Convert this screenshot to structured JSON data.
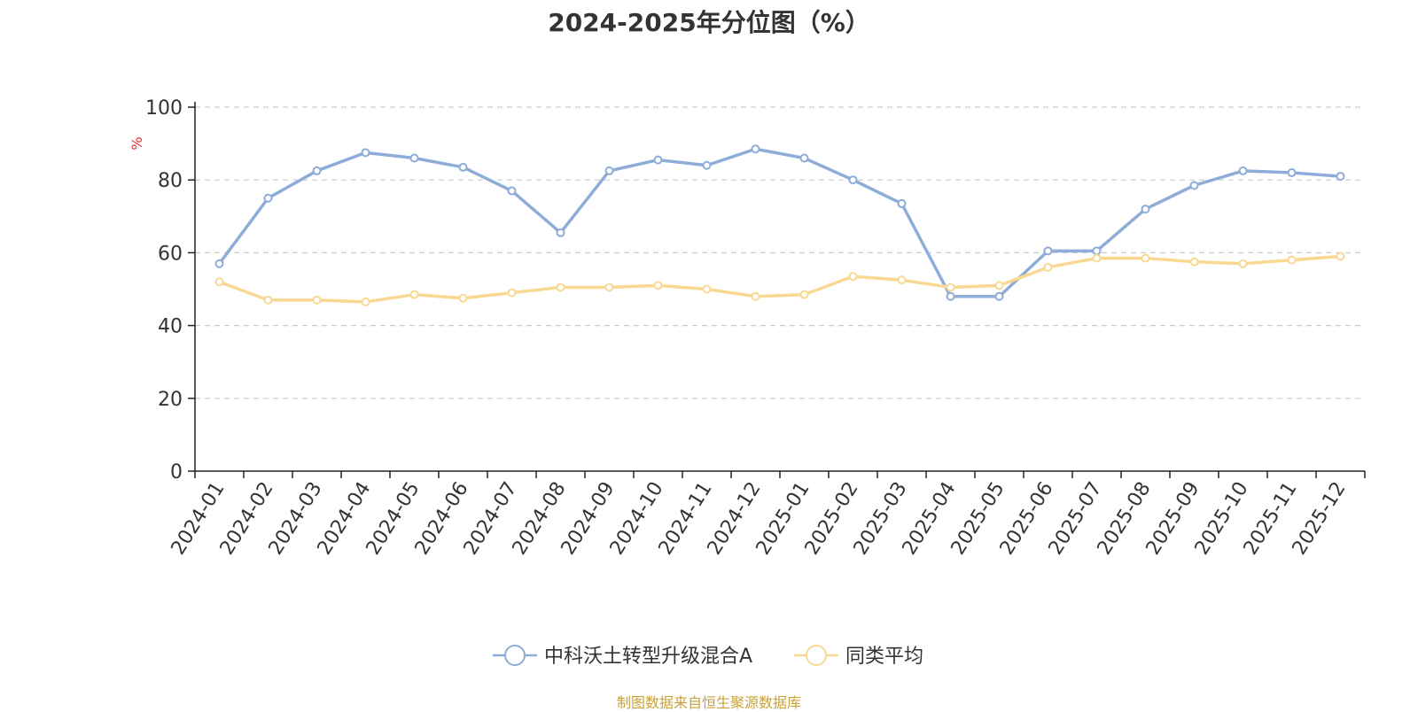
{
  "chart_data": {
    "type": "line",
    "title": "2024-2025年分位图（%）",
    "ylabel": "%",
    "ylim": [
      0,
      100
    ],
    "yticks": [
      0,
      20,
      40,
      60,
      80,
      100
    ],
    "grid": true,
    "legend_position": "bottom-center",
    "categories": [
      "2024-01",
      "2024-02",
      "2024-03",
      "2024-04",
      "2024-05",
      "2024-06",
      "2024-07",
      "2024-08",
      "2024-09",
      "2024-10",
      "2024-11",
      "2024-12",
      "2025-01",
      "2025-02",
      "2025-03",
      "2025-04",
      "2025-05",
      "2025-06",
      "2025-07",
      "2025-08",
      "2025-09",
      "2025-10",
      "2025-11",
      "2025-12"
    ],
    "series": [
      {
        "name": "中科沃土转型升级混合A",
        "color": "#8eacd8",
        "values": [
          57,
          75,
          82.5,
          87.5,
          86,
          83.5,
          77,
          65.5,
          82.5,
          85.5,
          84,
          88.5,
          86,
          80,
          73.5,
          48,
          48,
          60.5,
          60.5,
          72,
          78.5,
          82.5,
          82,
          81
        ]
      },
      {
        "name": "同类平均",
        "color": "#f9d992",
        "values": [
          52,
          47,
          47,
          46.5,
          48.5,
          47.5,
          49,
          50.5,
          50.5,
          51,
          50,
          48,
          48.5,
          53.5,
          52.5,
          50.5,
          51,
          56,
          58.5,
          58.5,
          57.5,
          57,
          58,
          59
        ]
      }
    ]
  },
  "source_text": "制图数据来自恒生聚源数据库",
  "colors": {
    "title": "#333333",
    "axis": "#222222",
    "grid": "#cccccc",
    "ylabel": "#e8312b",
    "source": "#c9a13a"
  }
}
